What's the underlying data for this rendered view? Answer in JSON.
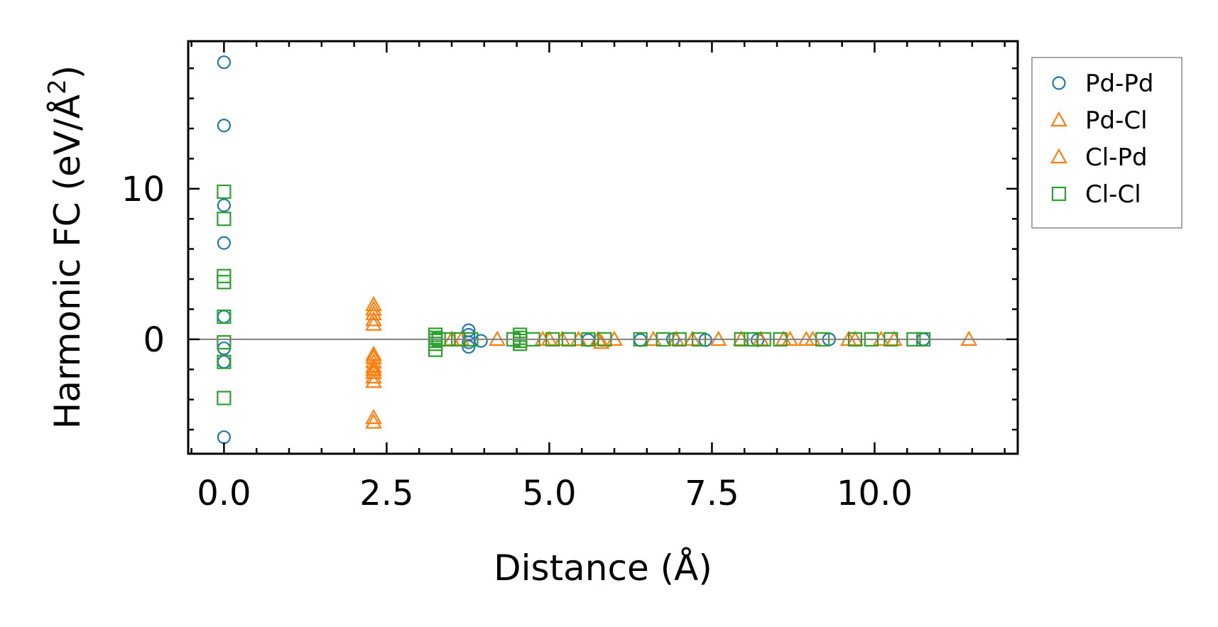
{
  "chart_data": {
    "type": "scatter",
    "title": "",
    "xlabel": "Distance (Å)",
    "ylabel": "Harmonic FC (eV/Å",
    "ylabel_sup": "2",
    "ylabel_close": ")",
    "xlim": [
      -0.55,
      12.2
    ],
    "ylim": [
      -7.6,
      19.8
    ],
    "xticks": [
      0.0,
      2.5,
      5.0,
      7.5,
      10.0
    ],
    "xtick_labels": [
      "0.0",
      "2.5",
      "5.0",
      "7.5",
      "10.0"
    ],
    "yticks": [
      0,
      10
    ],
    "ytick_labels": [
      "0",
      "10"
    ],
    "zero_line": true,
    "grid": false,
    "legend_position": "outside-right-top",
    "colors": {
      "blue": "#1f77b4",
      "orange": "#ff7f0e",
      "green": "#2ca02c",
      "zero_line": "#808080"
    },
    "series": [
      {
        "name": "Pd-Pd",
        "marker": "circle",
        "color": "#1f77b4",
        "points": [
          [
            0.0,
            18.4
          ],
          [
            0.0,
            14.2
          ],
          [
            0.0,
            8.9
          ],
          [
            0.0,
            6.4
          ],
          [
            0.0,
            1.5
          ],
          [
            0.0,
            -0.6
          ],
          [
            0.0,
            -1.5
          ],
          [
            0.0,
            -6.5
          ],
          [
            3.76,
            0.6
          ],
          [
            3.76,
            0.3
          ],
          [
            3.76,
            -0.2
          ],
          [
            3.76,
            -0.5
          ],
          [
            3.95,
            -0.1
          ],
          [
            5.6,
            -0.05
          ],
          [
            6.4,
            -0.05
          ],
          [
            6.9,
            0.0
          ],
          [
            7.4,
            -0.05
          ],
          [
            8.2,
            -0.05
          ],
          [
            9.3,
            0.0
          ],
          [
            10.75,
            0.0
          ]
        ]
      },
      {
        "name": "Pd-Cl",
        "marker": "triangle",
        "color": "#ff7f0e",
        "points": [
          [
            2.3,
            2.0
          ],
          [
            2.3,
            1.3
          ],
          [
            2.3,
            1.0
          ],
          [
            2.3,
            -1.0
          ],
          [
            2.3,
            -1.5
          ],
          [
            2.3,
            -2.0
          ],
          [
            2.3,
            -2.5
          ],
          [
            2.3,
            -5.2
          ],
          [
            3.65,
            0.0
          ],
          [
            4.2,
            0.0
          ],
          [
            5.0,
            0.0
          ],
          [
            5.45,
            0.0
          ],
          [
            5.8,
            -0.2
          ],
          [
            6.0,
            0.0
          ],
          [
            6.95,
            0.0
          ],
          [
            7.6,
            0.0
          ],
          [
            8.25,
            0.0
          ],
          [
            8.7,
            0.0
          ],
          [
            9.05,
            0.0
          ],
          [
            9.7,
            0.0
          ],
          [
            10.3,
            0.0
          ],
          [
            11.45,
            0.0
          ]
        ]
      },
      {
        "name": "Cl-Pd",
        "marker": "triangle",
        "color": "#ff7f0e",
        "points": [
          [
            2.3,
            2.3
          ],
          [
            2.3,
            1.7
          ],
          [
            2.3,
            -1.2
          ],
          [
            2.3,
            -1.8
          ],
          [
            2.3,
            -2.2
          ],
          [
            2.3,
            -2.8
          ],
          [
            2.3,
            -5.5
          ],
          [
            3.5,
            0.0
          ],
          [
            4.9,
            0.0
          ],
          [
            5.2,
            0.0
          ],
          [
            5.75,
            0.0
          ],
          [
            6.6,
            0.0
          ],
          [
            7.2,
            0.0
          ],
          [
            7.95,
            0.0
          ],
          [
            8.6,
            0.0
          ],
          [
            8.95,
            0.0
          ],
          [
            9.6,
            0.0
          ],
          [
            10.1,
            0.0
          ]
        ]
      },
      {
        "name": "Cl-Cl",
        "marker": "square",
        "color": "#2ca02c",
        "points": [
          [
            0.0,
            9.8
          ],
          [
            0.0,
            8.0
          ],
          [
            0.0,
            4.2
          ],
          [
            0.0,
            3.8
          ],
          [
            0.0,
            1.5
          ],
          [
            0.0,
            -0.2
          ],
          [
            0.0,
            -1.5
          ],
          [
            0.0,
            -3.9
          ],
          [
            3.25,
            0.3
          ],
          [
            3.25,
            0.1
          ],
          [
            3.25,
            -0.1
          ],
          [
            3.25,
            -0.3
          ],
          [
            3.25,
            -0.7
          ],
          [
            3.3,
            0.0
          ],
          [
            3.45,
            0.0
          ],
          [
            3.6,
            0.0
          ],
          [
            3.8,
            0.0
          ],
          [
            4.55,
            0.3
          ],
          [
            4.55,
            0.1
          ],
          [
            4.55,
            -0.1
          ],
          [
            4.55,
            -0.3
          ],
          [
            4.45,
            0.0
          ],
          [
            4.75,
            0.0
          ],
          [
            5.05,
            0.0
          ],
          [
            5.3,
            0.0
          ],
          [
            5.6,
            0.0
          ],
          [
            5.85,
            0.0
          ],
          [
            6.4,
            0.0
          ],
          [
            6.75,
            0.0
          ],
          [
            7.0,
            0.0
          ],
          [
            7.3,
            0.0
          ],
          [
            7.95,
            0.0
          ],
          [
            8.1,
            0.0
          ],
          [
            8.3,
            0.0
          ],
          [
            8.55,
            0.0
          ],
          [
            9.2,
            0.0
          ],
          [
            9.7,
            0.0
          ],
          [
            9.95,
            0.0
          ],
          [
            10.25,
            0.0
          ],
          [
            10.6,
            0.0
          ],
          [
            10.75,
            0.0
          ]
        ]
      }
    ]
  }
}
